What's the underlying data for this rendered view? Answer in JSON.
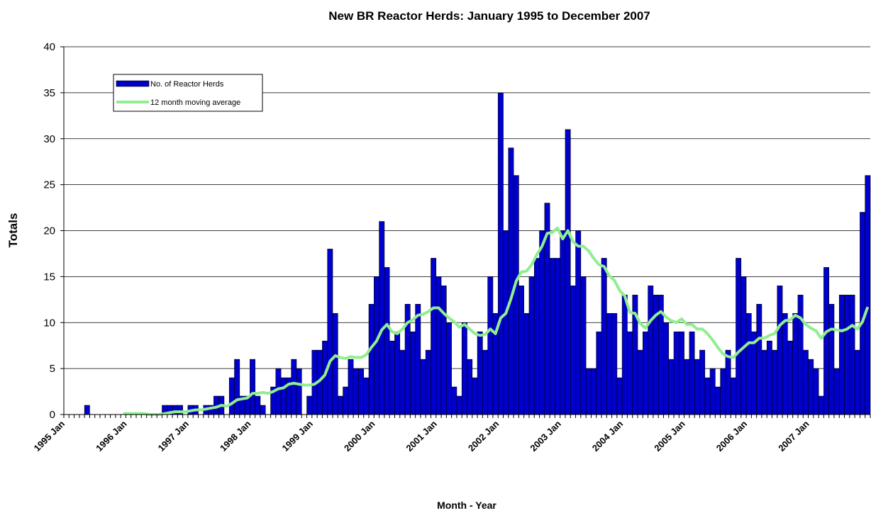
{
  "chart_data": {
    "type": "bar-line",
    "title": "New BR Reactor Herds: January 1995 to December 2007",
    "y_label": "Totals",
    "x_label": "Month - Year",
    "categories": [
      "1995 Jan",
      null,
      null,
      null,
      null,
      null,
      null,
      null,
      null,
      null,
      null,
      null,
      "1996 Jan",
      null,
      null,
      null,
      null,
      null,
      null,
      null,
      null,
      null,
      null,
      null,
      "1997 Jan",
      null,
      null,
      null,
      null,
      null,
      null,
      null,
      null,
      null,
      null,
      null,
      "1998 Jan",
      null,
      null,
      null,
      null,
      null,
      null,
      null,
      null,
      null,
      null,
      null,
      "1999 Jan",
      null,
      null,
      null,
      null,
      null,
      null,
      null,
      null,
      null,
      null,
      null,
      "2000 Jan",
      null,
      null,
      null,
      null,
      null,
      null,
      null,
      null,
      null,
      null,
      null,
      "2001 Jan",
      null,
      null,
      null,
      null,
      null,
      null,
      null,
      null,
      null,
      null,
      null,
      "2002 Jan",
      null,
      null,
      null,
      null,
      null,
      null,
      null,
      null,
      null,
      null,
      null,
      "2003 Jan",
      null,
      null,
      null,
      null,
      null,
      null,
      null,
      null,
      null,
      null,
      null,
      "2004 Jan",
      null,
      null,
      null,
      null,
      null,
      null,
      null,
      null,
      null,
      null,
      null,
      "2005 Jan",
      null,
      null,
      null,
      null,
      null,
      null,
      null,
      null,
      null,
      null,
      null,
      "2006 Jan",
      null,
      null,
      null,
      null,
      null,
      null,
      null,
      null,
      null,
      null,
      null,
      "2007 Jan",
      null,
      null,
      null,
      null,
      null,
      null,
      null,
      null,
      null,
      null,
      null
    ],
    "series": [
      {
        "name": "No. of Reactor Herds",
        "type": "bar",
        "color": "#0000cc",
        "values": [
          0,
          0,
          0,
          0,
          1,
          0,
          0,
          0,
          0,
          0,
          0,
          0,
          0,
          0,
          0,
          0,
          0,
          0,
          0,
          1,
          1,
          1,
          1,
          0,
          1,
          1,
          0,
          1,
          1,
          2,
          2,
          0,
          4,
          6,
          2,
          2,
          6,
          2,
          1,
          0,
          3,
          5,
          4,
          4,
          6,
          5,
          0,
          2,
          7,
          7,
          8,
          18,
          11,
          2,
          3,
          6,
          5,
          5,
          4,
          12,
          15,
          21,
          16,
          8,
          9,
          7,
          12,
          9,
          12,
          6,
          7,
          17,
          15,
          14,
          10,
          3,
          2,
          10,
          6,
          4,
          9,
          7,
          15,
          11,
          35,
          20,
          29,
          26,
          14,
          11,
          15,
          17,
          20,
          23,
          17,
          17,
          20,
          31,
          14,
          20,
          15,
          5,
          5,
          9,
          17,
          11,
          11,
          4,
          13,
          9,
          13,
          7,
          9,
          14,
          13,
          13,
          10,
          6,
          9,
          9,
          6,
          9,
          6,
          7,
          4,
          5,
          3,
          5,
          7,
          4,
          17,
          15,
          11,
          9,
          12,
          7,
          8,
          7,
          14,
          11,
          8,
          11,
          13,
          7,
          6,
          5,
          2,
          16,
          12,
          5,
          13,
          13,
          13,
          7,
          22,
          26
        ]
      },
      {
        "name": "12 month moving average",
        "type": "line",
        "color": "#90ee90",
        "values": [
          null,
          null,
          null,
          null,
          null,
          null,
          null,
          null,
          null,
          null,
          null,
          0.1,
          0.1,
          0.1,
          0.1,
          0.1,
          0.0,
          0.0,
          0.0,
          0.1,
          0.2,
          0.3,
          0.3,
          0.3,
          0.4,
          0.5,
          0.5,
          0.6,
          0.7,
          0.8,
          1.0,
          0.9,
          1.2,
          1.6,
          1.7,
          1.8,
          2.3,
          2.3,
          2.4,
          2.3,
          2.5,
          2.8,
          2.9,
          3.3,
          3.4,
          3.3,
          3.2,
          3.2,
          3.3,
          3.7,
          4.3,
          5.8,
          6.4,
          6.2,
          6.1,
          6.3,
          6.2,
          6.2,
          6.5,
          7.3,
          8.0,
          9.2,
          9.8,
          9.0,
          8.8,
          9.3,
          10.0,
          10.3,
          10.8,
          10.9,
          11.2,
          11.6,
          11.6,
          11.0,
          10.5,
          10.1,
          9.5,
          9.8,
          9.3,
          8.8,
          8.6,
          8.7,
          9.3,
          8.8,
          10.5,
          11.0,
          12.6,
          14.5,
          15.5,
          15.6,
          16.3,
          17.4,
          18.3,
          19.7,
          19.8,
          20.3,
          19.1,
          20.0,
          18.8,
          18.3,
          18.3,
          17.8,
          17.0,
          16.3,
          16.1,
          15.1,
          14.6,
          13.5,
          12.9,
          11.1,
          11.0,
          9.9,
          9.4,
          10.2,
          10.8,
          11.2,
          10.6,
          10.2,
          10.0,
          10.4,
          9.8,
          9.8,
          9.3,
          9.3,
          8.8,
          8.1,
          7.3,
          6.6,
          6.3,
          6.2,
          6.8,
          7.3,
          7.8,
          7.8,
          8.3,
          8.3,
          8.6,
          8.8,
          9.7,
          10.2,
          10.3,
          10.8,
          10.5,
          9.8,
          9.4,
          9.1,
          8.3,
          9.0,
          9.3,
          9.2,
          9.1,
          9.3,
          9.7,
          9.3,
          10.1,
          11.7
        ]
      }
    ],
    "ylim": [
      0,
      40
    ],
    "yticks": [
      0,
      5,
      10,
      15,
      20,
      25,
      30,
      35,
      40
    ],
    "grid": true,
    "legend": "upper left"
  }
}
